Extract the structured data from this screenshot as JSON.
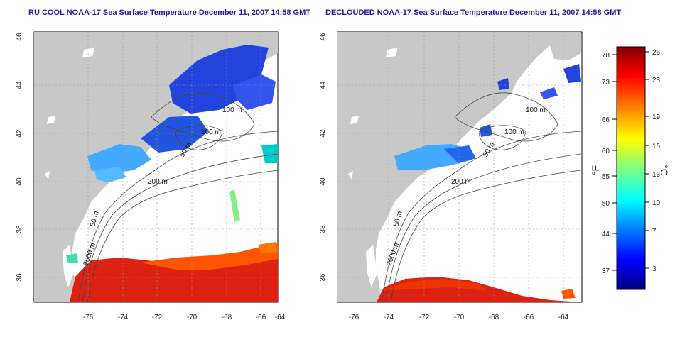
{
  "panels": [
    {
      "title": "RU COOL NOAA-17 Sea Surface Temperature December 11, 2007 14:58 GMT",
      "x_ticks": [
        "-76",
        "-74",
        "-72",
        "-70",
        "-68",
        "-66",
        "-64"
      ],
      "y_ticks": [
        "36",
        "38",
        "40",
        "42",
        "44",
        "46"
      ],
      "contour_labels": [
        "100 m",
        "100 m",
        "50 m",
        "200 m",
        "50 m",
        "2000 m"
      ]
    },
    {
      "title": "DECLOUDED NOAA-17 Sea Surface Temperature December 11, 2007 14:58 GMT",
      "x_ticks": [
        "-76",
        "-74",
        "-72",
        "-70",
        "-68",
        "-66",
        "-64"
      ],
      "y_ticks": [
        "36",
        "38",
        "40",
        "42",
        "44",
        "46"
      ],
      "contour_labels": [
        "100 m",
        "100 m",
        "50 m",
        "200 m",
        "50 m",
        "2000 m"
      ]
    }
  ],
  "colorbar": {
    "fahrenheit_labels": [
      "78",
      "73",
      "66",
      "60",
      "55",
      "50",
      "44",
      "37"
    ],
    "celsius_labels": [
      "26",
      "23",
      "19",
      "16",
      "13",
      "10",
      "7",
      "3"
    ],
    "fahrenheit_unit": "°F",
    "celsius_unit": "°C",
    "colors": [
      "#000080",
      "#0000ff",
      "#0080ff",
      "#00ffff",
      "#80ff80",
      "#ffff00",
      "#ff8000",
      "#ff0000",
      "#800000"
    ]
  },
  "colors": {
    "title": "#1a1aa8",
    "land": "#c8c8c8",
    "ocean": "#ffffff",
    "cold": "#2244dd",
    "cool": "#44aaff",
    "warm": "#ff5500",
    "hot": "#cc1100"
  }
}
